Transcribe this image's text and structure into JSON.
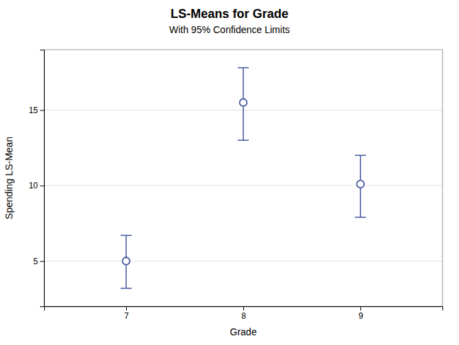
{
  "chart_data": {
    "type": "scatter",
    "title": "LS-Means for Grade",
    "subtitle": "With 95% Confidence Limits",
    "xlabel": "Grade",
    "ylabel": "Spending LS-Mean",
    "x": [
      7,
      8,
      9
    ],
    "values": [
      5.0,
      15.5,
      10.1
    ],
    "lower": [
      3.2,
      13.0,
      7.9
    ],
    "upper": [
      6.7,
      17.8,
      12.0
    ],
    "xlim": [
      6.3,
      9.7
    ],
    "xticks": [
      7,
      8,
      9
    ],
    "ylim": [
      2,
      19
    ],
    "yticks": [
      5,
      10,
      15
    ],
    "color": "#4055a0",
    "marker": "circle",
    "grid": true
  }
}
